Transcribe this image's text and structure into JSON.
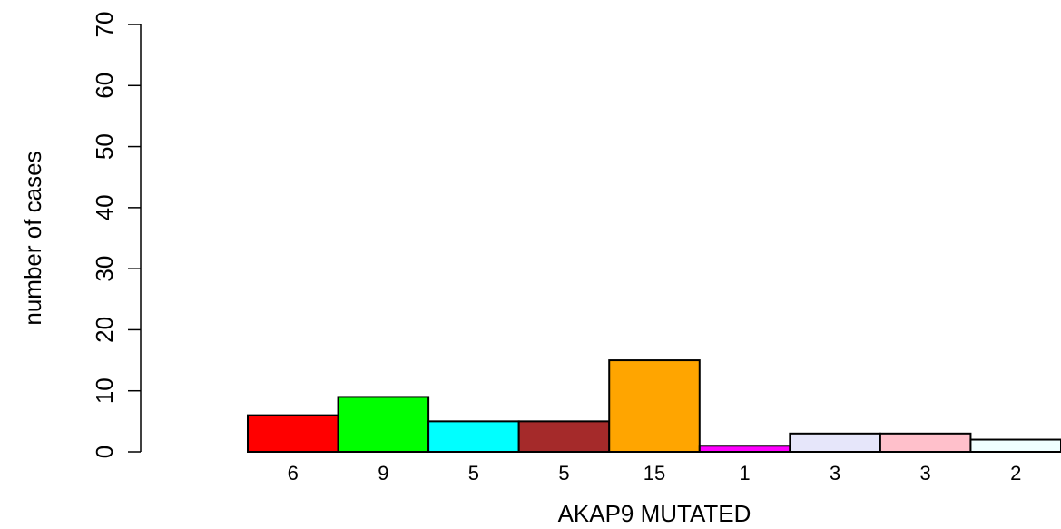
{
  "chart_data": {
    "type": "bar",
    "title": "",
    "xlabel": "AKAP9 MUTATED",
    "ylabel": "number of cases",
    "ylim": [
      0,
      70
    ],
    "yticks": [
      0,
      10,
      20,
      30,
      40,
      50,
      60,
      70
    ],
    "categories": [
      "6",
      "9",
      "5",
      "5",
      "15",
      "1",
      "3",
      "3",
      "2"
    ],
    "values": [
      6,
      9,
      5,
      5,
      15,
      1,
      3,
      3,
      2
    ],
    "colors": [
      "#ff0000",
      "#00ff00",
      "#00ffff",
      "#a52a2a",
      "#ffa500",
      "#ff00ff",
      "#e6e6fa",
      "#ffc0cb",
      "#f0ffff"
    ],
    "grid": false,
    "legend": "none"
  }
}
